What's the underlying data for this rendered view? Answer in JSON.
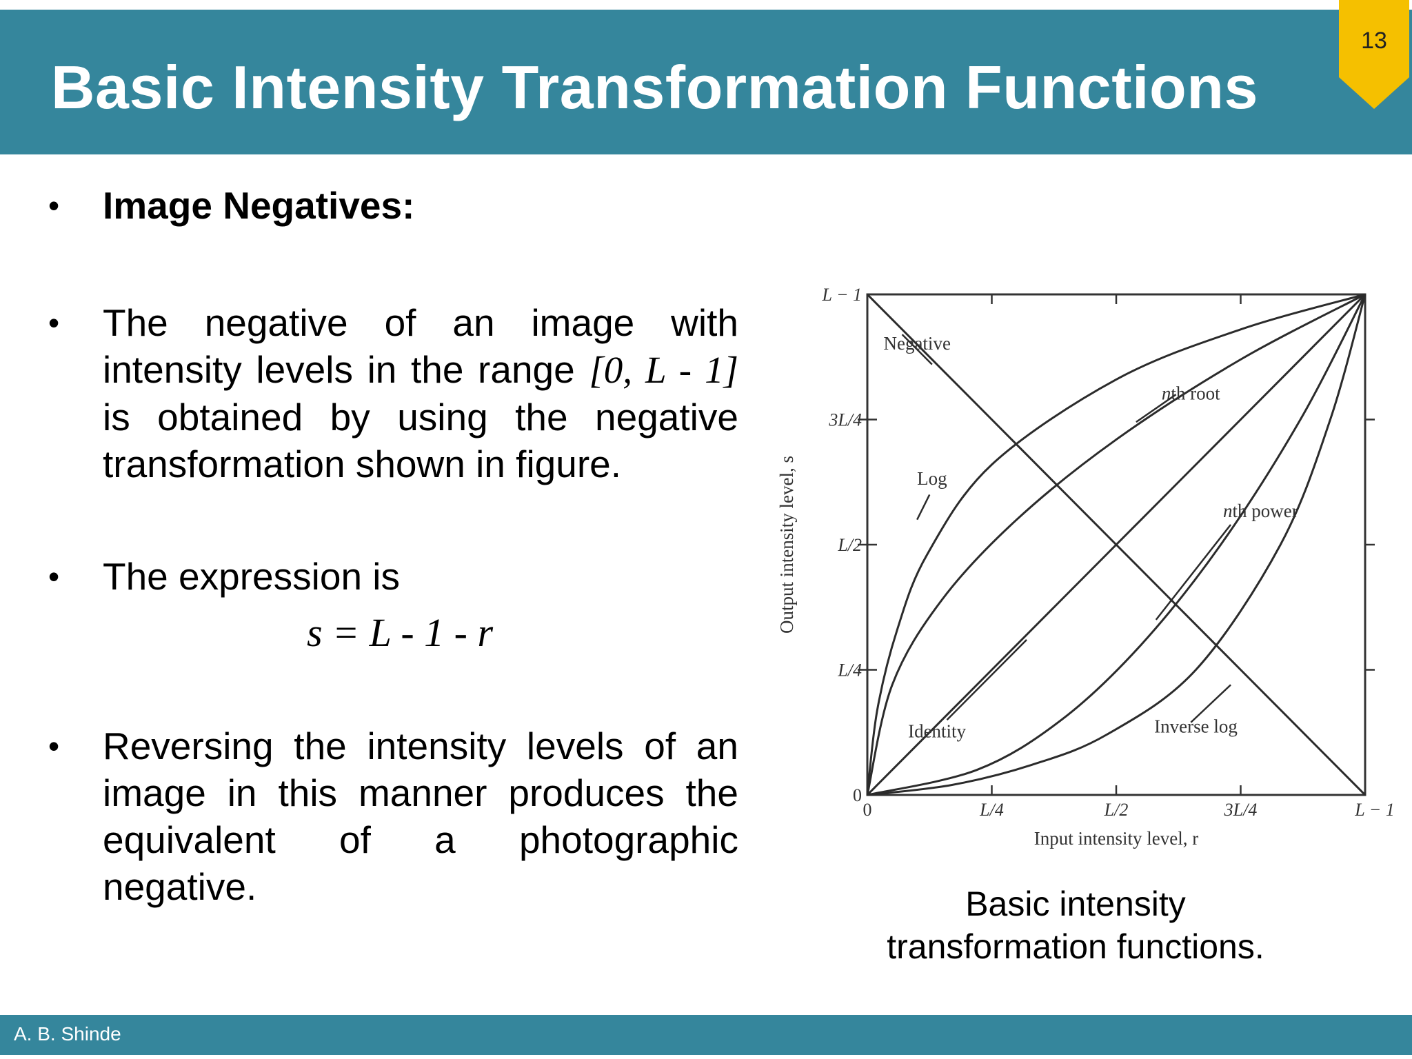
{
  "slide": {
    "title": "Basic Intensity Transformation Functions",
    "page_number": "13",
    "author": "A. B. Shinde",
    "colors": {
      "header": "#35869c",
      "badge": "#f5c000"
    }
  },
  "content": {
    "heading": "Image Negatives:",
    "p1": {
      "before": "The negative of an image with intensity levels in the range ",
      "range": "[0, L - 1]",
      "after": " is obtained by using the negative transformation shown in figure."
    },
    "p2": "The expression is",
    "formula": "s = L - 1 - r",
    "p3": "Reversing the intensity levels of an image in this manner produces the equivalent of a photographic negative."
  },
  "figure": {
    "caption": "Basic intensity transformation functions.",
    "chart_data": {
      "type": "line",
      "xlabel": "Input intensity level, r",
      "ylabel": "Output intensity level, s",
      "x_ticks": [
        "0",
        "L/4",
        "L/2",
        "3L/4",
        "L − 1"
      ],
      "y_ticks": [
        "0",
        "L/4",
        "L/2",
        "3L/4",
        "L − 1"
      ],
      "xlim": [
        0,
        1
      ],
      "ylim": [
        0,
        1
      ],
      "series": [
        {
          "name": "Negative",
          "x": [
            0,
            0.25,
            0.5,
            0.75,
            1
          ],
          "y": [
            1,
            0.75,
            0.5,
            0.25,
            0
          ]
        },
        {
          "name": "Identity",
          "x": [
            0,
            0.25,
            0.5,
            0.75,
            1
          ],
          "y": [
            0,
            0.25,
            0.5,
            0.75,
            1
          ]
        },
        {
          "name": "nth root",
          "x": [
            0,
            0.05,
            0.15,
            0.3,
            0.5,
            0.75,
            1
          ],
          "y": [
            0,
            0.22,
            0.39,
            0.55,
            0.71,
            0.87,
            1
          ]
        },
        {
          "name": "nth power",
          "x": [
            0,
            0.22,
            0.39,
            0.55,
            0.71,
            0.87,
            1
          ],
          "y": [
            0,
            0.05,
            0.15,
            0.3,
            0.5,
            0.75,
            1
          ]
        },
        {
          "name": "Log",
          "x": [
            0,
            0.02,
            0.06,
            0.12,
            0.25,
            0.5,
            0.75,
            1
          ],
          "y": [
            0,
            0.17,
            0.33,
            0.48,
            0.66,
            0.83,
            0.93,
            1
          ]
        },
        {
          "name": "Inverse log",
          "x": [
            0,
            0.17,
            0.33,
            0.48,
            0.66,
            0.83,
            0.93,
            1
          ],
          "y": [
            0,
            0.02,
            0.06,
            0.12,
            0.25,
            0.5,
            0.75,
            1
          ]
        }
      ]
    }
  }
}
